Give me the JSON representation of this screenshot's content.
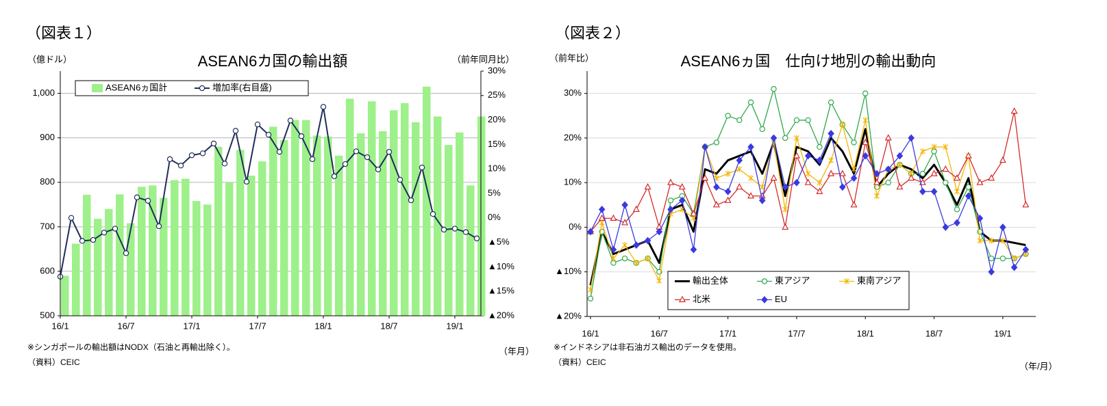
{
  "chart_data": [
    {
      "type": "bar",
      "figure_label": "（図表１）",
      "title": "ASEAN6カ国の輸出額",
      "y_unit": "（億ドル）",
      "y2_unit": "（前年同月比）",
      "x_unit": "（年月）",
      "notes": [
        "※シンガポールの輸出額はNODX（石油と再輸出除く）。",
        "（資料）CEIC"
      ],
      "categories": [
        "16/1",
        null,
        null,
        null,
        null,
        null,
        "16/7",
        null,
        null,
        null,
        null,
        null,
        "17/1",
        null,
        null,
        null,
        null,
        null,
        "17/7",
        null,
        null,
        null,
        null,
        null,
        "18/1",
        null,
        null,
        null,
        null,
        null,
        "18/7",
        null,
        null,
        null,
        null,
        null,
        "19/1",
        null,
        null
      ],
      "series": [
        {
          "name": "ASEAN6ヵ国計",
          "type": "bar",
          "color": "#9ef08a",
          "values": [
            590,
            662,
            772,
            718,
            740,
            773,
            708,
            790,
            793,
            765,
            805,
            808,
            758,
            750,
            880,
            800,
            873,
            815,
            847,
            925,
            895,
            940,
            940,
            905,
            903,
            860,
            988,
            910,
            982,
            915,
            962,
            978,
            935,
            1015,
            948,
            884,
            912,
            793,
            948
          ]
        },
        {
          "name": "増加率(右目盛)",
          "type": "line",
          "axis": "y2",
          "color": "#1f2d5a",
          "marker": "circle",
          "marker_filled": false,
          "line_width": 2,
          "values": [
            -12,
            0,
            -4.7,
            -4.5,
            -3,
            -2.2,
            -7.2,
            4.2,
            3.5,
            -1.7,
            12,
            10.7,
            12.8,
            13.2,
            15.2,
            11.1,
            17.8,
            7.4,
            19.1,
            17,
            13.5,
            19.9,
            16.7,
            12,
            22.7,
            8.5,
            11,
            13.6,
            12.4,
            9.9,
            13.5,
            7.8,
            3.6,
            10.3,
            0.8,
            -2.4,
            -2.2,
            -2.9,
            -4.2
          ]
        }
      ],
      "ylim": [
        500,
        1050
      ],
      "yticks": [
        500,
        600,
        700,
        800,
        900,
        {
          "value": 1000,
          "label": "1,000"
        }
      ],
      "y2lim": [
        -20,
        30
      ],
      "y2ticks": [
        {
          "value": -20,
          "label": "▲20%"
        },
        {
          "value": -15,
          "label": "▲15%"
        },
        {
          "value": -10,
          "label": "▲10%"
        },
        {
          "value": -5,
          "label": "▲5%"
        },
        {
          "value": 0,
          "label": "0%"
        },
        {
          "value": 5,
          "label": "5%"
        },
        {
          "value": 10,
          "label": "10%"
        },
        {
          "value": 15,
          "label": "15%"
        },
        {
          "value": 20,
          "label": "20%"
        },
        {
          "value": 25,
          "label": "25%"
        },
        {
          "value": 30,
          "label": "30%"
        }
      ],
      "grid": true,
      "legend": "upper left"
    },
    {
      "type": "line",
      "figure_label": "（図表２）",
      "title": "ASEAN6ヵ国　仕向け地別の輸出動向",
      "y_unit": "（前年比）",
      "x_unit": "（年/月）",
      "notes": [
        "※インドネシアは非石油ガス輸出のデータを使用。",
        "（資料）CEIC"
      ],
      "categories": [
        "16/1",
        null,
        null,
        null,
        null,
        null,
        "16/7",
        null,
        null,
        null,
        null,
        null,
        "17/1",
        null,
        null,
        null,
        null,
        null,
        "17/7",
        null,
        null,
        null,
        null,
        null,
        "18/1",
        null,
        null,
        null,
        null,
        null,
        "18/7",
        null,
        null,
        null,
        null,
        null,
        "19/1",
        null,
        null
      ],
      "series": [
        {
          "name": "輸出全体",
          "color": "#000000",
          "line_width": 3,
          "values": [
            -13,
            -1,
            -6,
            -5,
            -4,
            -3,
            -8,
            4,
            5,
            -1,
            13,
            12,
            15,
            16,
            17,
            12,
            19,
            7,
            18,
            17,
            14,
            20,
            17,
            12,
            22,
            9,
            12,
            14,
            13,
            11,
            14,
            10,
            5,
            11,
            -1,
            -3,
            -3,
            -3.5,
            -4
          ]
        },
        {
          "name": "東アジア",
          "color": "#2ea84a",
          "marker": "circle",
          "marker_filled": false,
          "line_width": 1.3,
          "values": [
            -16,
            -1,
            -8,
            -7,
            -8,
            -7,
            -10,
            6,
            7,
            3,
            18,
            19,
            25,
            24,
            28,
            22,
            31,
            20,
            24,
            24,
            18,
            28,
            23,
            19,
            30,
            9,
            10,
            14,
            12,
            12,
            17,
            10,
            4,
            9,
            -1,
            -7,
            -7,
            -7,
            -6
          ]
        },
        {
          "name": "東南アジア",
          "color": "#f2b705",
          "marker": "star",
          "marker_filled": false,
          "line_width": 1.3,
          "values": [
            -14,
            1,
            -7,
            -4,
            -8,
            -7,
            -12,
            3,
            4,
            2,
            18,
            11,
            12,
            13,
            11,
            9,
            19,
            4,
            20,
            12,
            10,
            15,
            23,
            13,
            24,
            7,
            13,
            14,
            12,
            17,
            18,
            18,
            8,
            16,
            -3,
            -3,
            -3,
            -7,
            -6
          ]
        },
        {
          "name": "北米",
          "color": "#d42a2a",
          "marker": "triangle",
          "marker_filled": false,
          "line_width": 1.3,
          "values": [
            -1,
            2,
            2,
            1,
            4,
            9,
            0,
            10,
            9,
            3,
            11,
            5,
            6,
            9,
            7,
            7,
            11,
            0,
            16,
            10,
            8,
            12,
            12,
            5,
            19,
            10,
            20,
            9,
            11,
            10,
            12,
            13,
            11,
            16,
            10,
            11,
            15,
            26,
            5
          ]
        },
        {
          "name": "EU",
          "color": "#3a3ae0",
          "marker": "diamond",
          "marker_filled": true,
          "line_width": 1.3,
          "values": [
            -1,
            4,
            -5,
            5,
            -4,
            -3,
            -1,
            4,
            6,
            -5,
            18,
            9,
            8,
            15,
            18,
            6,
            20,
            9,
            10,
            16,
            15,
            21,
            9,
            11,
            16,
            12,
            13,
            16,
            20,
            8,
            8,
            0,
            1,
            7,
            2,
            -10,
            0,
            -9,
            -5
          ]
        }
      ],
      "ylim": [
        -20,
        35
      ],
      "yticks": [
        {
          "value": -20,
          "label": "▲20%"
        },
        {
          "value": -10,
          "label": "▲10%"
        },
        {
          "value": 0,
          "label": "0%"
        },
        {
          "value": 10,
          "label": "10%"
        },
        {
          "value": 20,
          "label": "20%"
        },
        {
          "value": 30,
          "label": "30%"
        }
      ],
      "grid": true,
      "legend": "lower left"
    }
  ]
}
